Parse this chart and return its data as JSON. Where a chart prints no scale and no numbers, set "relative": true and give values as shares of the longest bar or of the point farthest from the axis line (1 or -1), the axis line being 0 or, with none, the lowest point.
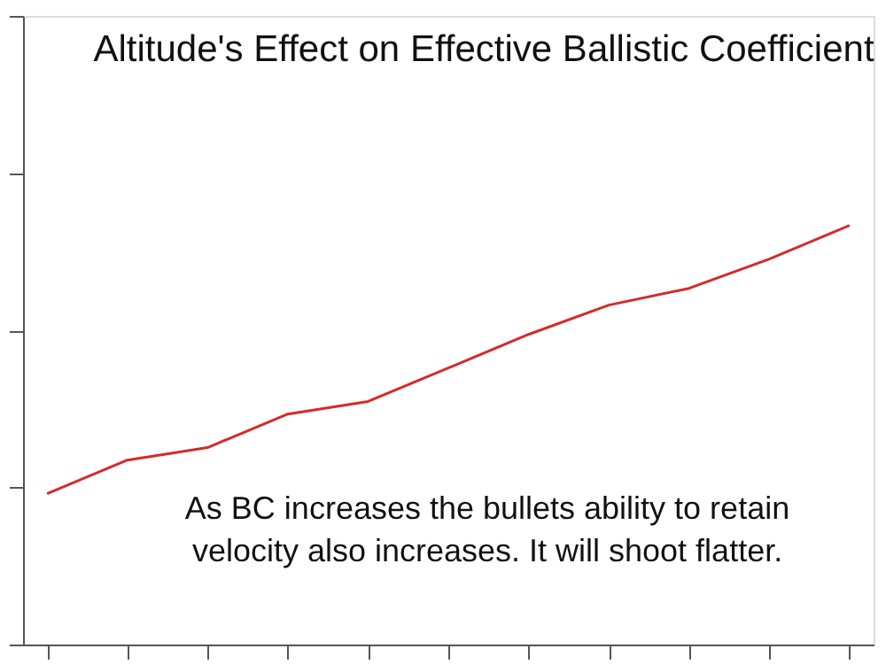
{
  "chart_data": {
    "type": "line",
    "title": "Altitude's Effect on Effective Ballistic Coefficient",
    "relative": true,
    "categories": [
      null,
      null,
      null,
      null,
      null,
      null,
      null,
      null,
      null,
      null,
      null
    ],
    "series": [
      {
        "color": "#d42a2a",
        "values": [
          0.36,
          0.44,
          0.47,
          0.55,
          0.58,
          0.66,
          0.74,
          0.81,
          0.85,
          0.92,
          1.0
        ]
      }
    ],
    "annotations": [
      "As BC increases the bullets ability to retain velocity also increases.  It will shoot flatter."
    ],
    "grid": false,
    "marker": "none",
    "line_style": "solid"
  }
}
